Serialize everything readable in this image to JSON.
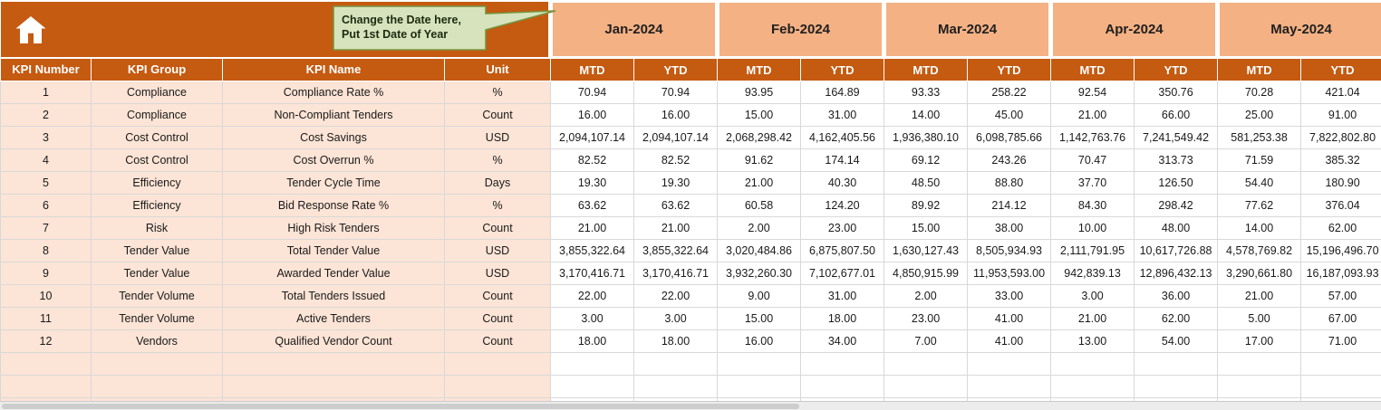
{
  "colors": {
    "header-orange": "#C55A11",
    "month-bg": "#F4B183",
    "label-bg": "#FCE4D6",
    "grid-line": "#D9D9D9",
    "callout-fill": "#D6E3BC",
    "callout-border": "#77933C"
  },
  "callout": {
    "line1": "Change the Date here,",
    "line2": "Put 1st Date of Year"
  },
  "months": [
    "Jan-2024",
    "Feb-2024",
    "Mar-2024",
    "Apr-2024",
    "May-2024"
  ],
  "subheaders": [
    "MTD",
    "YTD"
  ],
  "columns": [
    "KPI Number",
    "KPI Group",
    "KPI Name",
    "Unit"
  ],
  "rows": [
    {
      "num": "1",
      "group": "Compliance",
      "name": "Compliance Rate %",
      "unit": "%",
      "values": [
        "70.94",
        "70.94",
        "93.95",
        "164.89",
        "93.33",
        "258.22",
        "92.54",
        "350.76",
        "70.28",
        "421.04"
      ]
    },
    {
      "num": "2",
      "group": "Compliance",
      "name": "Non-Compliant Tenders",
      "unit": "Count",
      "values": [
        "16.00",
        "16.00",
        "15.00",
        "31.00",
        "14.00",
        "45.00",
        "21.00",
        "66.00",
        "25.00",
        "91.00"
      ]
    },
    {
      "num": "3",
      "group": "Cost Control",
      "name": "Cost Savings",
      "unit": "USD",
      "values": [
        "2,094,107.14",
        "2,094,107.14",
        "2,068,298.42",
        "4,162,405.56",
        "1,936,380.10",
        "6,098,785.66",
        "1,142,763.76",
        "7,241,549.42",
        "581,253.38",
        "7,822,802.80"
      ]
    },
    {
      "num": "4",
      "group": "Cost Control",
      "name": "Cost Overrun %",
      "unit": "%",
      "values": [
        "82.52",
        "82.52",
        "91.62",
        "174.14",
        "69.12",
        "243.26",
        "70.47",
        "313.73",
        "71.59",
        "385.32"
      ]
    },
    {
      "num": "5",
      "group": "Efficiency",
      "name": "Tender Cycle Time",
      "unit": "Days",
      "values": [
        "19.30",
        "19.30",
        "21.00",
        "40.30",
        "48.50",
        "88.80",
        "37.70",
        "126.50",
        "54.40",
        "180.90"
      ]
    },
    {
      "num": "6",
      "group": "Efficiency",
      "name": "Bid Response Rate %",
      "unit": "%",
      "values": [
        "63.62",
        "63.62",
        "60.58",
        "124.20",
        "89.92",
        "214.12",
        "84.30",
        "298.42",
        "77.62",
        "376.04"
      ]
    },
    {
      "num": "7",
      "group": "Risk",
      "name": "High Risk Tenders",
      "unit": "Count",
      "values": [
        "21.00",
        "21.00",
        "2.00",
        "23.00",
        "15.00",
        "38.00",
        "10.00",
        "48.00",
        "14.00",
        "62.00"
      ]
    },
    {
      "num": "8",
      "group": "Tender Value",
      "name": "Total Tender Value",
      "unit": "USD",
      "values": [
        "3,855,322.64",
        "3,855,322.64",
        "3,020,484.86",
        "6,875,807.50",
        "1,630,127.43",
        "8,505,934.93",
        "2,111,791.95",
        "10,617,726.88",
        "4,578,769.82",
        "15,196,496.70"
      ]
    },
    {
      "num": "9",
      "group": "Tender Value",
      "name": "Awarded Tender Value",
      "unit": "USD",
      "values": [
        "3,170,416.71",
        "3,170,416.71",
        "3,932,260.30",
        "7,102,677.01",
        "4,850,915.99",
        "11,953,593.00",
        "942,839.13",
        "12,896,432.13",
        "3,290,661.80",
        "16,187,093.93"
      ]
    },
    {
      "num": "10",
      "group": "Tender Volume",
      "name": "Total Tenders Issued",
      "unit": "Count",
      "values": [
        "22.00",
        "22.00",
        "9.00",
        "31.00",
        "2.00",
        "33.00",
        "3.00",
        "36.00",
        "21.00",
        "57.00"
      ]
    },
    {
      "num": "11",
      "group": "Tender Volume",
      "name": "Active Tenders",
      "unit": "Count",
      "values": [
        "3.00",
        "3.00",
        "15.00",
        "18.00",
        "23.00",
        "41.00",
        "21.00",
        "62.00",
        "5.00",
        "67.00"
      ]
    },
    {
      "num": "12",
      "group": "Vendors",
      "name": "Qualified Vendor Count",
      "unit": "Count",
      "values": [
        "18.00",
        "18.00",
        "16.00",
        "34.00",
        "7.00",
        "41.00",
        "13.00",
        "54.00",
        "17.00",
        "71.00"
      ]
    }
  ],
  "empty_rows": 3
}
